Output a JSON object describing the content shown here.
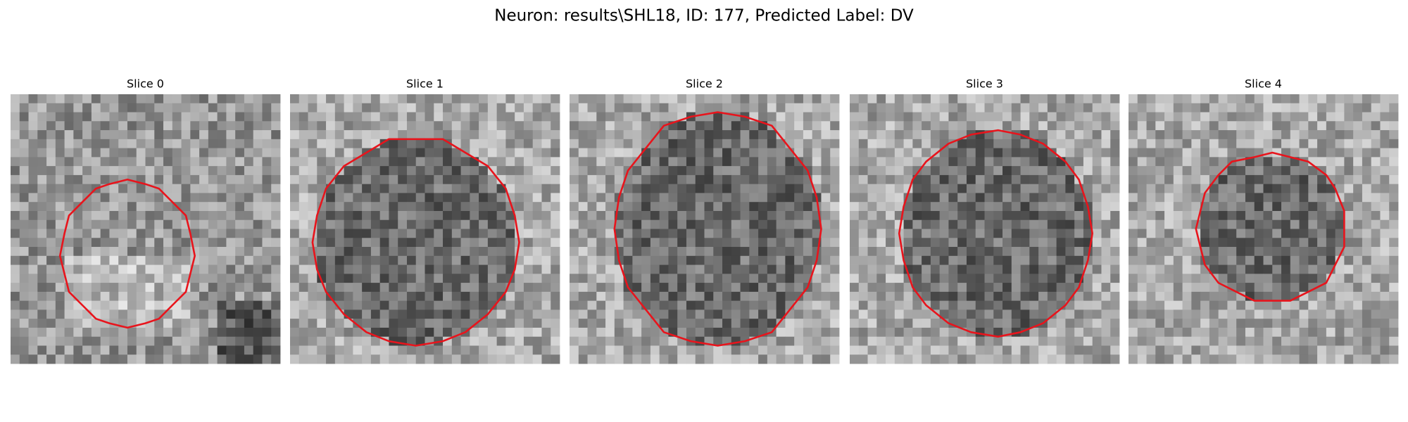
{
  "title": "Neuron: results\\SHL18, ID: 177, Predicted Label: DV",
  "panels": [
    {
      "title": "Slice 0"
    },
    {
      "title": "Slice 1"
    },
    {
      "title": "Slice 2"
    },
    {
      "title": "Slice 3"
    },
    {
      "title": "Slice 4"
    }
  ]
}
